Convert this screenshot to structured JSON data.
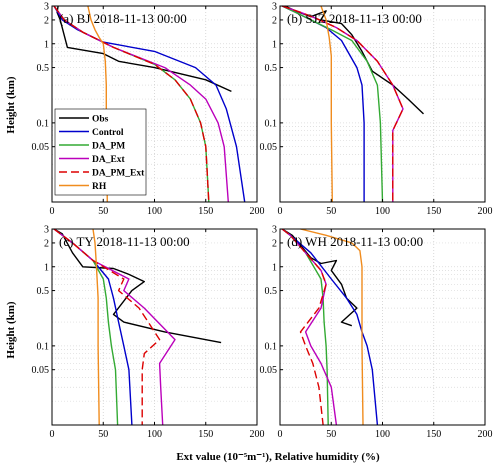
{
  "figure": {
    "xlabel": "Ext value (10⁻⁵m⁻¹),  Relative humidity (%)",
    "ylabel": "Height (km)"
  },
  "colors": {
    "Obs": "#000000",
    "Control": "#0000cc",
    "DA_PM": "#33aa33",
    "DA_Ext": "#bb00bb",
    "DA_PM_Ext": "#dd0000",
    "RH": "#f08c1e"
  },
  "chart_data": [
    {
      "type": "line",
      "title": "(a) BJ 2018-11-13 00:00",
      "xlim": [
        0,
        200
      ],
      "xticks": [
        0,
        50,
        100,
        150,
        200
      ],
      "ylim": [
        0.01,
        3
      ],
      "yscale": "log",
      "yticks": [
        0.05,
        0.1,
        0.5,
        1,
        2,
        3
      ],
      "yticklabels": [
        "0.05",
        "0.1",
        "0.5",
        "1",
        "2",
        "3"
      ],
      "grid": true,
      "legend": "left",
      "series": [
        {
          "name": "Obs",
          "dash": "",
          "x": [
            6,
            5,
            8,
            15,
            50,
            65,
            100,
            150,
            175
          ],
          "y": [
            3,
            2.5,
            2,
            0.9,
            0.75,
            0.6,
            0.5,
            0.35,
            0.25
          ]
        },
        {
          "name": "Control",
          "dash": "",
          "x": [
            2,
            10,
            25,
            50,
            100,
            140,
            160,
            170,
            180,
            188
          ],
          "y": [
            3,
            2,
            1.5,
            1.05,
            0.8,
            0.5,
            0.3,
            0.15,
            0.05,
            0.01
          ]
        },
        {
          "name": "DA_PM",
          "dash": "",
          "x": [
            2,
            12,
            30,
            60,
            100,
            120,
            135,
            145,
            150,
            153
          ],
          "y": [
            3,
            2,
            1.4,
            0.9,
            0.55,
            0.35,
            0.2,
            0.1,
            0.05,
            0.01
          ]
        },
        {
          "name": "DA_Ext",
          "dash": "",
          "x": [
            2,
            12,
            30,
            60,
            110,
            135,
            150,
            162,
            168,
            172
          ],
          "y": [
            3,
            2,
            1.4,
            0.9,
            0.5,
            0.3,
            0.2,
            0.1,
            0.05,
            0.01
          ]
        },
        {
          "name": "DA_PM_Ext",
          "dash": "8,4",
          "x": [
            2,
            12,
            30,
            60,
            100,
            120,
            135,
            145,
            150,
            153
          ],
          "y": [
            3,
            2,
            1.4,
            0.9,
            0.55,
            0.35,
            0.2,
            0.1,
            0.05,
            0.01
          ]
        },
        {
          "name": "RH",
          "dash": "",
          "x": [
            35,
            38,
            42,
            46,
            50,
            52,
            53,
            53,
            54
          ],
          "y": [
            3,
            2,
            1.5,
            1.2,
            1,
            0.6,
            0.3,
            0.1,
            0.01
          ]
        }
      ]
    },
    {
      "type": "line",
      "title": "(b) SJZ 2018-11-13 00:00",
      "xlim": [
        0,
        200
      ],
      "xticks": [
        0,
        50,
        100,
        150,
        200
      ],
      "ylim": [
        0.01,
        3
      ],
      "yscale": "log",
      "yticks": [
        0.05,
        0.1,
        0.5,
        1,
        2,
        3
      ],
      "yticklabels": [
        "0.05",
        "0.1",
        "0.5",
        "1",
        "2",
        "3"
      ],
      "grid": true,
      "series": [
        {
          "name": "Obs",
          "dash": "",
          "x": [
            5,
            15,
            30,
            45,
            40,
            60,
            70,
            80,
            90,
            110,
            125,
            140
          ],
          "y": [
            3,
            2.6,
            2.2,
            2.6,
            2,
            1.8,
            1.3,
            0.8,
            0.45,
            0.3,
            0.2,
            0.13
          ]
        },
        {
          "name": "Control",
          "dash": "",
          "x": [
            2,
            15,
            30,
            45,
            60,
            75,
            80,
            82,
            82
          ],
          "y": [
            3,
            2.5,
            2,
            1.6,
            1.1,
            0.5,
            0.3,
            0.1,
            0.01
          ]
        },
        {
          "name": "DA_PM",
          "dash": "",
          "x": [
            2,
            15,
            30,
            50,
            70,
            85,
            95,
            98,
            100
          ],
          "y": [
            3,
            2.5,
            2,
            1.5,
            1.1,
            0.6,
            0.3,
            0.1,
            0.01
          ]
        },
        {
          "name": "DA_Ext",
          "dash": "",
          "x": [
            2,
            20,
            35,
            55,
            75,
            95,
            110,
            120,
            110,
            110
          ],
          "y": [
            3,
            2.5,
            2.1,
            1.6,
            1.1,
            0.6,
            0.3,
            0.15,
            0.08,
            0.01
          ]
        },
        {
          "name": "DA_PM_Ext",
          "dash": "8,4",
          "x": [
            2,
            20,
            35,
            55,
            75,
            95,
            110,
            120,
            110,
            110
          ],
          "y": [
            3,
            2.5,
            2.1,
            1.6,
            1.1,
            0.6,
            0.3,
            0.15,
            0.08,
            0.01
          ]
        },
        {
          "name": "RH",
          "dash": "",
          "x": [
            40,
            45,
            48,
            50,
            50,
            50,
            51
          ],
          "y": [
            3,
            2,
            1.2,
            0.7,
            0.4,
            0.1,
            0.01
          ]
        }
      ]
    },
    {
      "type": "line",
      "title": "(c) TY 2018-11-13 00:00",
      "xlim": [
        0,
        200
      ],
      "xticks": [
        0,
        50,
        100,
        150,
        200
      ],
      "ylim": [
        0.01,
        3
      ],
      "yscale": "log",
      "yticks": [
        0.05,
        0.1,
        0.5,
        1,
        2,
        3
      ],
      "yticklabels": [
        "0.05",
        "0.1",
        "0.5",
        "1",
        "2",
        "3"
      ],
      "grid": true,
      "series": [
        {
          "name": "Obs",
          "dash": "",
          "x": [
            2,
            10,
            20,
            30,
            60,
            75,
            90,
            78,
            60,
            70,
            110,
            165
          ],
          "y": [
            3,
            2.6,
            1.5,
            1.0,
            0.95,
            0.8,
            0.65,
            0.5,
            0.25,
            0.2,
            0.15,
            0.11
          ]
        },
        {
          "name": "Control",
          "dash": "",
          "x": [
            2,
            20,
            40,
            55,
            60,
            65,
            70,
            75,
            78
          ],
          "y": [
            3,
            2,
            1.2,
            0.7,
            0.4,
            0.2,
            0.1,
            0.05,
            0.01
          ]
        },
        {
          "name": "DA_PM",
          "dash": "",
          "x": [
            2,
            20,
            40,
            50,
            53,
            55,
            58,
            62,
            64
          ],
          "y": [
            3,
            2,
            1.2,
            0.7,
            0.4,
            0.2,
            0.1,
            0.05,
            0.01
          ]
        },
        {
          "name": "DA_Ext",
          "dash": "",
          "x": [
            2,
            20,
            40,
            75,
            70,
            90,
            120,
            105,
            106,
            108
          ],
          "y": [
            3,
            2,
            1.2,
            0.7,
            0.5,
            0.3,
            0.12,
            0.06,
            0.03,
            0.01
          ]
        },
        {
          "name": "DA_PM_Ext",
          "dash": "8,4",
          "x": [
            2,
            20,
            40,
            70,
            65,
            85,
            105,
            90,
            88,
            88
          ],
          "y": [
            3,
            2,
            1.2,
            0.7,
            0.5,
            0.3,
            0.12,
            0.08,
            0.05,
            0.01
          ]
        },
        {
          "name": "RH",
          "dash": "",
          "x": [
            40,
            42,
            43,
            44,
            45,
            45,
            46
          ],
          "y": [
            3,
            2,
            1.2,
            0.7,
            0.4,
            0.1,
            0.01
          ]
        }
      ]
    },
    {
      "type": "line",
      "title": "(d) WH 2018-11-13 00:00",
      "xlim": [
        0,
        200
      ],
      "xticks": [
        0,
        50,
        100,
        150,
        200
      ],
      "ylim": [
        0.01,
        3
      ],
      "yscale": "log",
      "yticks": [
        0.05,
        0.1,
        0.5,
        1,
        2,
        3
      ],
      "yticklabels": [
        "0.05",
        "0.1",
        "0.5",
        "1",
        "2",
        "3"
      ],
      "grid": true,
      "series": [
        {
          "name": "Obs",
          "dash": "",
          "x": [
            2,
            12,
            30,
            40,
            55,
            50,
            60,
            65,
            75,
            60,
            70
          ],
          "y": [
            3,
            2.5,
            1.3,
            1.1,
            1.2,
            0.9,
            0.6,
            0.4,
            0.3,
            0.2,
            0.18
          ]
        },
        {
          "name": "Control",
          "dash": "",
          "x": [
            2,
            10,
            30,
            50,
            65,
            75,
            80,
            85,
            90,
            95
          ],
          "y": [
            3,
            2.5,
            1.5,
            0.7,
            0.4,
            0.25,
            0.15,
            0.1,
            0.05,
            0.01
          ]
        },
        {
          "name": "DA_PM",
          "dash": "",
          "x": [
            2,
            10,
            25,
            40,
            42,
            43,
            45,
            46,
            47
          ],
          "y": [
            3,
            2.5,
            1.5,
            0.7,
            0.4,
            0.2,
            0.1,
            0.05,
            0.01
          ]
        },
        {
          "name": "DA_Ext",
          "dash": "",
          "x": [
            2,
            10,
            25,
            40,
            45,
            40,
            25,
            30,
            40,
            50,
            55
          ],
          "y": [
            3,
            2.5,
            1.5,
            0.9,
            0.6,
            0.3,
            0.15,
            0.1,
            0.06,
            0.03,
            0.01
          ]
        },
        {
          "name": "DA_PM_Ext",
          "dash": "8,4",
          "x": [
            2,
            10,
            25,
            40,
            45,
            38,
            20,
            25,
            32,
            38,
            42
          ],
          "y": [
            3,
            2.5,
            1.5,
            0.9,
            0.6,
            0.3,
            0.15,
            0.1,
            0.06,
            0.03,
            0.01
          ]
        },
        {
          "name": "RH",
          "dash": "",
          "x": [
            20,
            45,
            70,
            78,
            80,
            80,
            80,
            81
          ],
          "y": [
            3,
            2.5,
            2,
            1.6,
            1,
            0.5,
            0.1,
            0.01
          ]
        }
      ]
    }
  ]
}
